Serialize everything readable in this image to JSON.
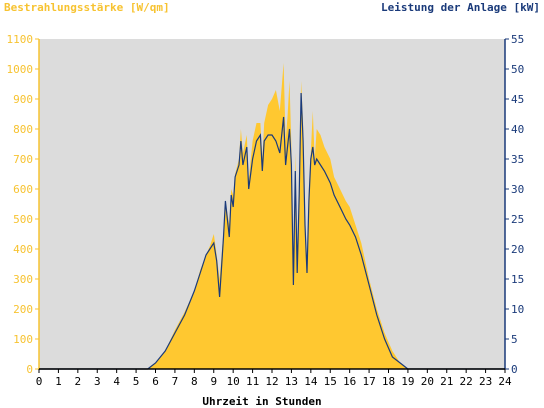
{
  "chart_data": {
    "type": "area",
    "title_left": "Bestrahlungsstärke [W/qm]",
    "title_right": "Leistung der Anlage [kW]",
    "xlabel": "Uhrzeit in Stunden",
    "xlim": [
      0,
      24
    ],
    "ylim_left": [
      0,
      1100
    ],
    "ylim_right": [
      0,
      55
    ],
    "x_ticks": [
      "0",
      "1",
      "2",
      "3",
      "4",
      "5",
      "6",
      "7",
      "8",
      "9",
      "10",
      "11",
      "12",
      "13",
      "14",
      "15",
      "16",
      "17",
      "18",
      "19",
      "20",
      "21",
      "22",
      "23",
      "24"
    ],
    "y_left_ticks": [
      "0",
      "100",
      "200",
      "300",
      "400",
      "500",
      "600",
      "700",
      "800",
      "900",
      "1000",
      "1100"
    ],
    "y_right_ticks": [
      "0",
      "5",
      "10",
      "15",
      "20",
      "25",
      "30",
      "35",
      "40",
      "45",
      "50",
      "55"
    ],
    "grid": false,
    "series": [
      {
        "name": "Bestrahlungsstärke [W/qm]",
        "axis": "left",
        "color": "#ffc830",
        "x": [
          5.6,
          6.0,
          6.5,
          7.0,
          7.5,
          8.0,
          8.3,
          8.6,
          8.8,
          9.0,
          9.15,
          9.3,
          9.5,
          9.6,
          9.8,
          9.9,
          10.0,
          10.1,
          10.3,
          10.4,
          10.5,
          10.7,
          10.8,
          11.0,
          11.2,
          11.4,
          11.5,
          11.6,
          11.8,
          12.0,
          12.2,
          12.4,
          12.6,
          12.7,
          12.8,
          12.9,
          13.0,
          13.1,
          13.2,
          13.3,
          13.4,
          13.5,
          13.6,
          13.7,
          13.8,
          13.9,
          14.0,
          14.1,
          14.2,
          14.3,
          14.5,
          14.7,
          15.0,
          15.2,
          15.5,
          15.8,
          16.0,
          16.3,
          16.6,
          17.0,
          17.4,
          17.8,
          18.2,
          18.6,
          19.0,
          19.2
        ],
        "values": [
          0,
          20,
          60,
          130,
          190,
          260,
          330,
          380,
          410,
          450,
          380,
          300,
          460,
          560,
          480,
          600,
          580,
          650,
          700,
          800,
          720,
          780,
          630,
          760,
          820,
          820,
          700,
          820,
          880,
          900,
          930,
          860,
          1020,
          760,
          840,
          960,
          740,
          300,
          720,
          330,
          600,
          960,
          820,
          480,
          340,
          600,
          720,
          860,
          700,
          800,
          780,
          740,
          700,
          640,
          600,
          560,
          540,
          480,
          420,
          300,
          200,
          120,
          60,
          20,
          0,
          0
        ]
      },
      {
        "name": "Leistung der Anlage [kW]",
        "axis": "right",
        "color": "#1a3a7a",
        "x": [
          5.6,
          6.0,
          6.5,
          7.0,
          7.5,
          8.0,
          8.3,
          8.6,
          8.8,
          9.0,
          9.15,
          9.3,
          9.5,
          9.6,
          9.8,
          9.9,
          10.0,
          10.1,
          10.3,
          10.4,
          10.5,
          10.7,
          10.8,
          11.0,
          11.2,
          11.4,
          11.5,
          11.6,
          11.8,
          12.0,
          12.2,
          12.4,
          12.6,
          12.7,
          12.8,
          12.9,
          13.0,
          13.1,
          13.2,
          13.3,
          13.4,
          13.5,
          13.6,
          13.7,
          13.8,
          13.9,
          14.0,
          14.1,
          14.2,
          14.3,
          14.5,
          14.7,
          15.0,
          15.2,
          15.5,
          15.8,
          16.0,
          16.3,
          16.6,
          17.0,
          17.4,
          17.8,
          18.2,
          18.6,
          19.0,
          19.2
        ],
        "values": [
          0,
          1,
          3,
          6,
          9,
          13,
          16,
          19,
          20,
          21,
          18,
          12,
          22,
          28,
          22,
          29,
          27,
          32,
          34,
          38,
          34,
          37,
          30,
          35,
          38,
          39,
          33,
          38,
          39,
          39,
          38,
          36,
          42,
          34,
          37,
          40,
          34,
          14,
          33,
          16,
          29,
          46,
          38,
          24,
          16,
          28,
          35,
          37,
          34,
          35,
          34,
          33,
          31,
          29,
          27,
          25,
          24,
          22,
          19,
          14,
          9,
          5,
          2,
          1,
          0,
          0
        ]
      }
    ]
  }
}
